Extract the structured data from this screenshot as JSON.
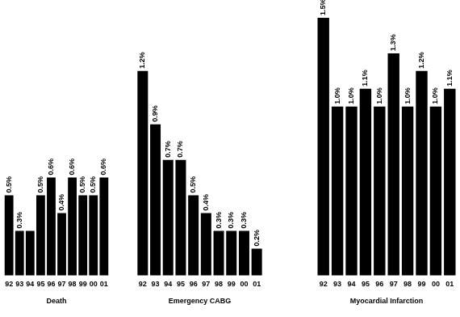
{
  "chart_data": [
    {
      "type": "bar",
      "x_label": "Death",
      "categories": [
        "92",
        "93",
        "94",
        "95",
        "96",
        "97",
        "98",
        "99",
        "00",
        "01"
      ],
      "values": [
        0.5,
        0.3,
        0.3,
        0.5,
        0.6,
        0.4,
        0.6,
        0.5,
        0.5,
        0.6
      ],
      "value_labels": [
        "0.5%",
        "0.3%",
        null,
        "0.5%",
        "0.6%",
        "0.4%",
        "0.6%",
        "0.5%",
        "0.5%",
        "0.6%"
      ],
      "color": "#000000",
      "ylim": [
        0.05,
        1.6
      ],
      "grid": false,
      "data_labels": true,
      "tick_labels": "x"
    },
    {
      "type": "bar",
      "x_label": "Emergency CABG",
      "categories": [
        "92",
        "93",
        "94",
        "95",
        "96",
        "97",
        "98",
        "99",
        "00",
        "01"
      ],
      "values": [
        1.2,
        0.9,
        0.7,
        0.7,
        0.5,
        0.4,
        0.3,
        0.3,
        0.3,
        0.2
      ],
      "value_labels": [
        "1.2%",
        "0.9%",
        "0.7%",
        "0.7%",
        "0.5%",
        "0.4%",
        "0.3%",
        "0.3%",
        "0.3%",
        "0.2%"
      ],
      "color": "#000000",
      "ylim": [
        0.05,
        1.6
      ],
      "grid": false,
      "data_labels": true,
      "tick_labels": "x"
    },
    {
      "type": "bar",
      "x_label": "Myocardial Infarction",
      "categories": [
        "92",
        "93",
        "94",
        "95",
        "96",
        "97",
        "98",
        "99",
        "00",
        "01"
      ],
      "values": [
        1.5,
        1.0,
        1.0,
        1.1,
        1.0,
        1.3,
        1.0,
        1.2,
        1.0,
        1.1
      ],
      "value_labels": [
        "1.5%",
        "1.0%",
        "1.0%",
        "1.1%",
        "1.0%",
        "1.3%",
        "1.0%",
        "1.2%",
        "1.0%",
        "1.1%"
      ],
      "color": "#000000",
      "ylim": [
        0.05,
        1.6
      ],
      "grid": false,
      "data_labels": true,
      "tick_labels": "x"
    }
  ]
}
